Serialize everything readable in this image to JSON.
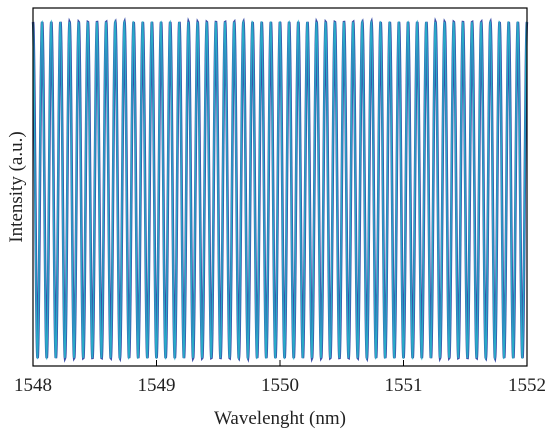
{
  "chart_data": {
    "type": "line",
    "title": "",
    "xlabel": "Wavelenght (nm)",
    "ylabel": "Intensity (a.u.)",
    "xlim": [
      1548,
      1552
    ],
    "ylim": [
      0,
      1
    ],
    "x_ticks": [
      "1548",
      "1549",
      "1550",
      "1551",
      "1552"
    ],
    "y_ticks": [],
    "grid": false,
    "legend": "none",
    "fringe_count": 54,
    "series": [
      {
        "color": "#3a4fa8",
        "y_min": 0.0,
        "y_max": 1.0
      },
      {
        "color": "#29a9c8",
        "y_min": 0.0,
        "y_max": 1.0
      }
    ]
  }
}
